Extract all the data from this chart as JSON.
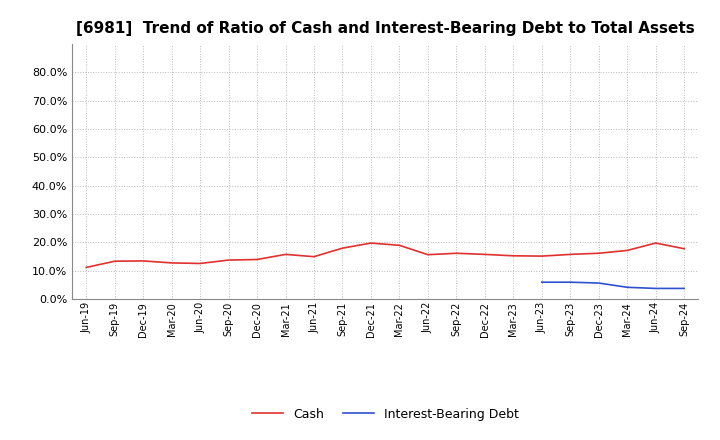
{
  "title": "[6981]  Trend of Ratio of Cash and Interest-Bearing Debt to Total Assets",
  "x_labels": [
    "Jun-19",
    "Sep-19",
    "Dec-19",
    "Mar-20",
    "Jun-20",
    "Sep-20",
    "Dec-20",
    "Mar-21",
    "Jun-21",
    "Sep-21",
    "Dec-21",
    "Mar-22",
    "Jun-22",
    "Sep-22",
    "Dec-22",
    "Mar-23",
    "Jun-23",
    "Sep-23",
    "Dec-23",
    "Mar-24",
    "Jun-24",
    "Sep-24"
  ],
  "cash": [
    0.112,
    0.134,
    0.135,
    0.128,
    0.126,
    0.138,
    0.14,
    0.158,
    0.15,
    0.18,
    0.198,
    0.19,
    0.157,
    0.162,
    0.158,
    0.153,
    0.152,
    0.158,
    0.162,
    0.172,
    0.198,
    0.178
  ],
  "debt": [
    null,
    null,
    null,
    null,
    null,
    null,
    null,
    null,
    null,
    null,
    null,
    null,
    null,
    null,
    null,
    null,
    0.06,
    0.06,
    0.057,
    0.042,
    0.038,
    0.038
  ],
  "cash_color": "#e03030",
  "debt_color": "#3050d0",
  "ylim": [
    0.0,
    0.9
  ],
  "yticks": [
    0.0,
    0.1,
    0.2,
    0.3,
    0.4,
    0.5,
    0.6,
    0.7,
    0.8
  ],
  "background_color": "#ffffff",
  "grid_color": "#bbbbbb",
  "title_fontsize": 11,
  "legend_labels": [
    "Cash",
    "Interest-Bearing Debt"
  ]
}
